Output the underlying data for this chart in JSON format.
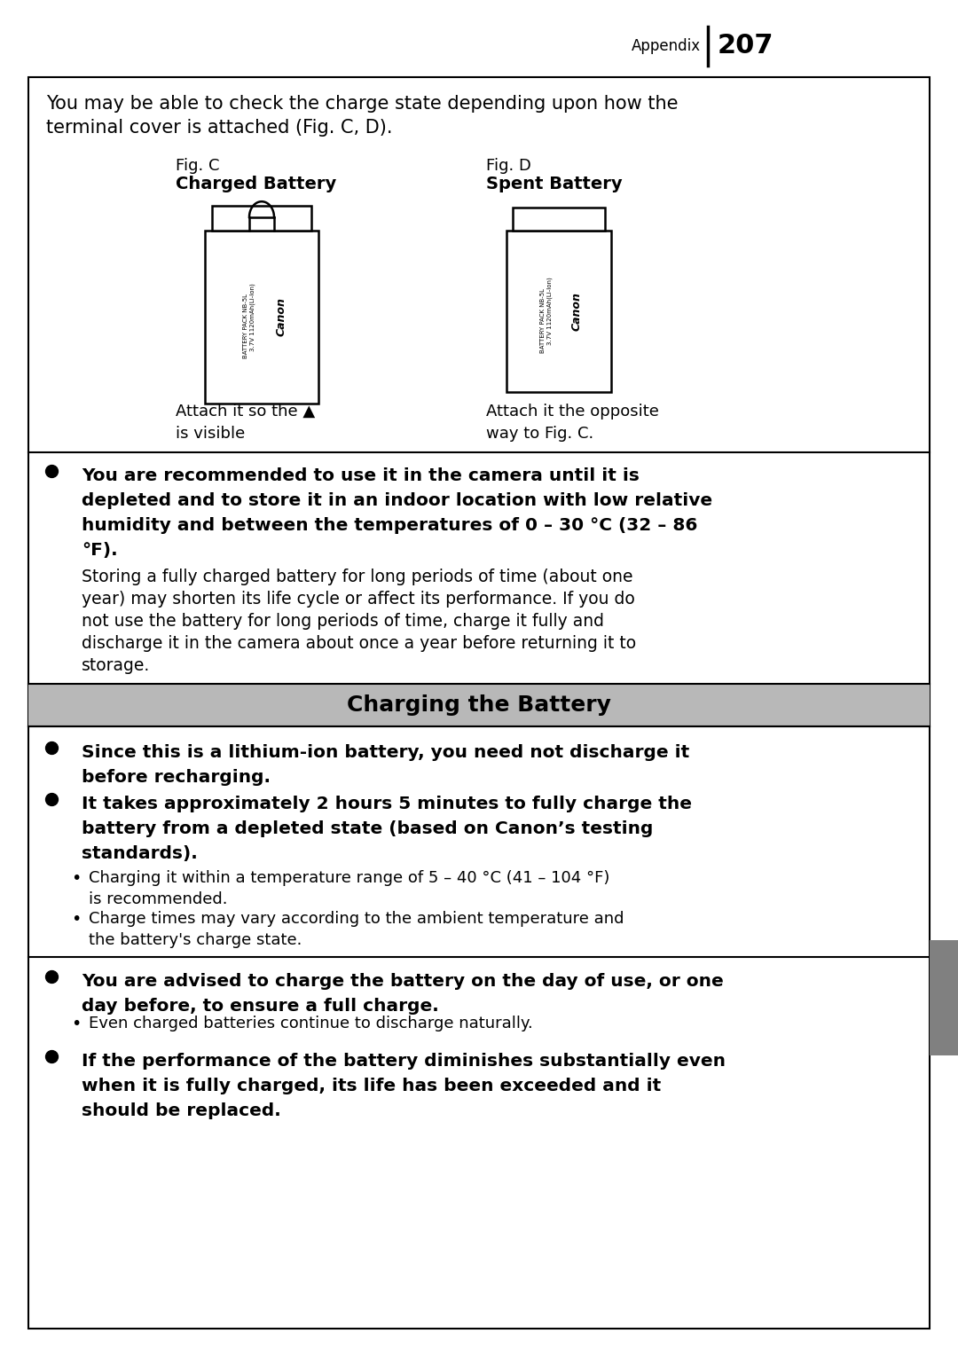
{
  "page_header_text": "Appendix",
  "page_number": "207",
  "bg_color": "#ffffff",
  "border_color": "#000000",
  "section_bg": "#b8b8b8",
  "section_title": "Charging the Battery",
  "intro_text_line1": "You may be able to check the charge state depending upon how the",
  "intro_text_line2": "terminal cover is attached (Fig. C, D).",
  "fig_c_label": "Fig. C",
  "fig_c_sublabel": "Charged Battery",
  "fig_d_label": "Fig. D",
  "fig_d_sublabel": "Spent Battery",
  "fig_c_caption_line1": "Attach it so the ▲",
  "fig_c_caption_line2": "is visible",
  "fig_d_caption_line1": "Attach it the opposite",
  "fig_d_caption_line2": "way to Fig. C.",
  "bullet1_bold_line1": "You are recommended to use it in the camera until it is",
  "bullet1_bold_line2": "depleted and to store it in an indoor location with low relative",
  "bullet1_bold_line3": "humidity and between the temperatures of 0 – 30 °C (32 – 86",
  "bullet1_bold_line4": "°F).",
  "bullet1_normal_line1": "Storing a fully charged battery for long periods of time (about one",
  "bullet1_normal_line2": "year) may shorten its life cycle or affect its performance. If you do",
  "bullet1_normal_line3": "not use the battery for long periods of time, charge it fully and",
  "bullet1_normal_line4": "discharge it in the camera about once a year before returning it to",
  "bullet1_normal_line5": "storage.",
  "section2_b1_line1": "Since this is a lithium-ion battery, you need not discharge it",
  "section2_b1_line2": "before recharging.",
  "section2_b2_line1": "It takes approximately 2 hours 5 minutes to fully charge the",
  "section2_b2_line2": "battery from a depleted state (based on Canon’s testing",
  "section2_b2_line3": "standards).",
  "section2_sub1_line1": "Charging it within a temperature range of 5 – 40 °C (41 – 104 °F)",
  "section2_sub1_line2": "is recommended.",
  "section2_sub2_line1": "Charge times may vary according to the ambient temperature and",
  "section2_sub2_line2": "the battery's charge state.",
  "section3_b1_line1": "You are advised to charge the battery on the day of use, or one",
  "section3_b1_line2": "day before, to ensure a full charge.",
  "section3_sub1": "Even charged batteries continue to discharge naturally.",
  "section3_b2_line1": "If the performance of the battery diminishes substantially even",
  "section3_b2_line2": "when it is fully charged, its life has been exceeded and it",
  "section3_b2_line3": "should be replaced.",
  "right_tab_color": "#808080",
  "cannon_text": "Canon",
  "battery_spec": "BATTERY PACK NB-5L",
  "battery_spec2": "3.7V 1120mAh(Li-Ion)"
}
